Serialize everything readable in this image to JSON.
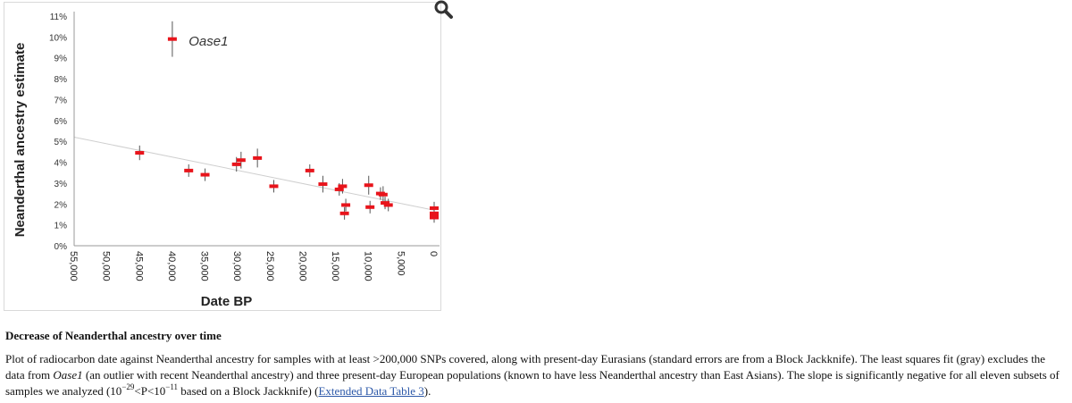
{
  "figure": {
    "zoom_icon": "magnifier-icon",
    "colors": {
      "point": "#e8141b",
      "errorbar": "#555555",
      "fit": "#cfcfcf",
      "axis": "#999999"
    }
  },
  "chart_data": {
    "type": "scatter",
    "title": "",
    "xlabel": "Date BP",
    "ylabel": "Neanderthal ancestry estimate",
    "xlim": [
      55000,
      0
    ],
    "ylim": [
      0,
      11
    ],
    "x_reversed": true,
    "x_ticks": [
      "55,000",
      "50,000",
      "45,000",
      "40,000",
      "35,000",
      "30,000",
      "25,000",
      "20,000",
      "15,000",
      "10,000",
      "5,000",
      "0"
    ],
    "x_tick_values": [
      55000,
      50000,
      45000,
      40000,
      35000,
      30000,
      25000,
      20000,
      15000,
      10000,
      5000,
      0
    ],
    "y_ticks": [
      "0%",
      "1%",
      "2%",
      "3%",
      "4%",
      "5%",
      "6%",
      "7%",
      "8%",
      "9%",
      "10%",
      "11%"
    ],
    "y_tick_values": [
      0,
      1,
      2,
      3,
      4,
      5,
      6,
      7,
      8,
      9,
      10,
      11
    ],
    "grid": false,
    "annotations": [
      {
        "text": "Oase1",
        "x": 37500,
        "y": 9.8
      }
    ],
    "fit_line": {
      "label": "least squares fit",
      "x": [
        55000,
        0
      ],
      "y": [
        5.2,
        1.7
      ]
    },
    "points": [
      {
        "x": 40000,
        "y": 9.9,
        "err": 0.85
      },
      {
        "x": 45000,
        "y": 4.45,
        "err": 0.35
      },
      {
        "x": 37500,
        "y": 3.6,
        "err": 0.3
      },
      {
        "x": 35000,
        "y": 3.4,
        "err": 0.3
      },
      {
        "x": 30200,
        "y": 3.9,
        "err": 0.35
      },
      {
        "x": 29500,
        "y": 4.1,
        "err": 0.4
      },
      {
        "x": 27000,
        "y": 4.2,
        "err": 0.45
      },
      {
        "x": 24500,
        "y": 2.85,
        "err": 0.3
      },
      {
        "x": 19000,
        "y": 3.6,
        "err": 0.3
      },
      {
        "x": 17000,
        "y": 2.95,
        "err": 0.4
      },
      {
        "x": 14500,
        "y": 2.7,
        "err": 0.3
      },
      {
        "x": 14000,
        "y": 2.85,
        "err": 0.35
      },
      {
        "x": 13500,
        "y": 1.95,
        "err": 0.3
      },
      {
        "x": 13700,
        "y": 1.55,
        "err": 0.3
      },
      {
        "x": 10000,
        "y": 2.9,
        "err": 0.45
      },
      {
        "x": 9800,
        "y": 1.85,
        "err": 0.3
      },
      {
        "x": 8200,
        "y": 2.5,
        "err": 0.3
      },
      {
        "x": 7800,
        "y": 2.45,
        "err": 0.4
      },
      {
        "x": 7500,
        "y": 2.05,
        "err": 0.3
      },
      {
        "x": 7000,
        "y": 1.95,
        "err": 0.3
      },
      {
        "x": 0,
        "y": 1.8,
        "err": 0.3
      },
      {
        "x": 0,
        "y": 1.55,
        "err": 0.25
      },
      {
        "x": 0,
        "y": 1.4,
        "err": 0.25
      },
      {
        "x": 0,
        "y": 1.35,
        "err": 0.25
      }
    ]
  },
  "caption": {
    "title": "Decrease of Neanderthal ancestry over time",
    "p1": "Plot of radiocarbon date against Neanderthal ancestry for samples with at least >200,000 SNPs covered, along with present-day Eurasians (standard errors are from a Block Jackknife). The least squares fit (gray) excludes the data from ",
    "oase": "Oase1",
    "p2": " (an outlier with recent Neanderthal ancestry) and three present-day European populations (known to have less Neanderthal ancestry than East Asians). The slope is significantly negative for all eleven subsets of samples we analyzed (10",
    "sup1": "−29",
    "p3": "<P<10",
    "sup2": "−11",
    "p4": " based on a Block Jackknife) (",
    "link": "Extended Data Table 3",
    "p5": ")."
  }
}
